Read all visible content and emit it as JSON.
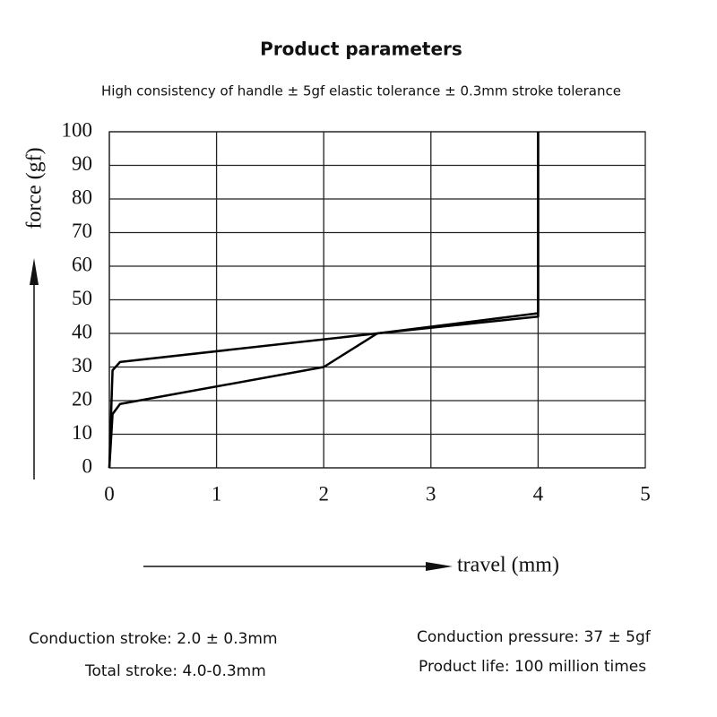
{
  "chart_data": {
    "type": "line",
    "title": "Product parameters",
    "subtitle": "High consistency of handle ± 5gf elastic tolerance ± 0.3mm stroke tolerance",
    "x_label": "travel (mm)",
    "y_label": "force (gf)",
    "xlim": [
      0,
      5
    ],
    "ylim": [
      0,
      100
    ],
    "xticks": [
      0,
      1,
      2,
      3,
      4,
      5
    ],
    "yticks": [
      0,
      10,
      20,
      30,
      40,
      50,
      60,
      70,
      80,
      90,
      100
    ],
    "grid": true,
    "series": [
      {
        "color": "#000000",
        "x": [
          0,
          0.03,
          0.1,
          2,
          2.5,
          4,
          4
        ],
        "values": [
          0,
          16,
          19,
          30,
          40,
          45,
          100
        ]
      },
      {
        "color": "#000000",
        "x": [
          0,
          0.03,
          0.1,
          2.5,
          4,
          4
        ],
        "values": [
          0,
          29,
          31.5,
          40,
          46,
          100
        ]
      }
    ],
    "annotations": [
      "Conduction stroke: 2.0 ± 0.3mm",
      "Total stroke: 4.0-0.3mm",
      "Conduction pressure: 37 ± 5gf",
      "Product life: 100 million times"
    ]
  }
}
